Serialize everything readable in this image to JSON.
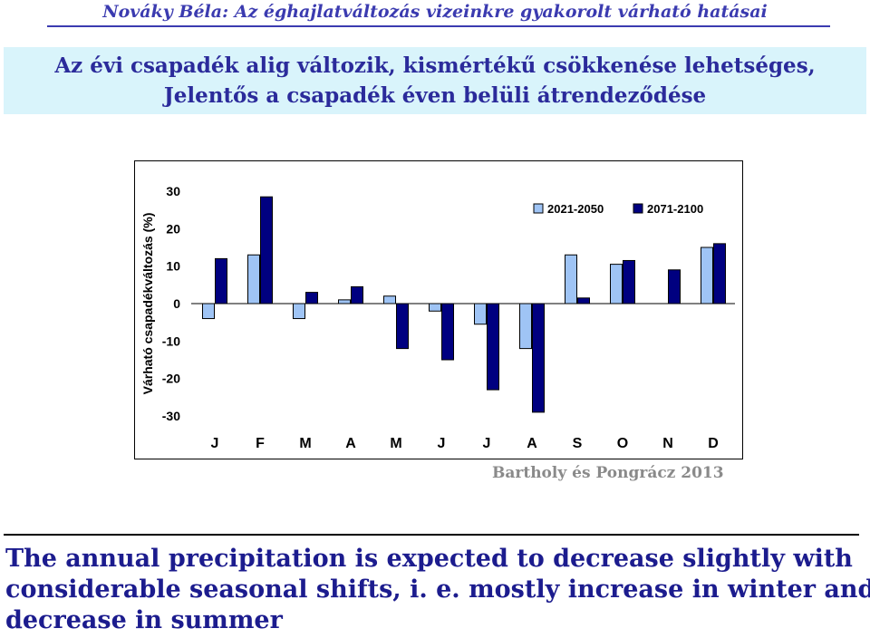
{
  "header": {
    "title": "Nováky Béla: Az éghajlatváltozás vizeinkre gyakorolt várható hatásai"
  },
  "headline": {
    "line1": "Az évi csapadék alig változik, kismértékű csökkenése lehetséges,",
    "line2": "Jelentős a csapadék éven belüli átrendeződése"
  },
  "chart_data": {
    "type": "bar",
    "title": "",
    "xlabel": "",
    "ylabel": "Várható csapadékváltozás (%)",
    "ylim": [
      -30,
      30
    ],
    "yticks": [
      30,
      20,
      10,
      0,
      -10,
      -20,
      -30
    ],
    "grid": false,
    "legend_position": "top-right",
    "categories": [
      "J",
      "F",
      "M",
      "A",
      "M",
      "J",
      "J",
      "A",
      "S",
      "O",
      "N",
      "D"
    ],
    "series": [
      {
        "name": "2021-2050",
        "color": "#9fc4f5",
        "values": [
          -4,
          13,
          -4,
          1,
          2,
          -2,
          -5.5,
          -12,
          13,
          10.5,
          0,
          15
        ]
      },
      {
        "name": "2071-2100",
        "color": "#000080",
        "values": [
          12,
          28.5,
          3,
          4.5,
          -12,
          -15,
          -23,
          -29,
          1.5,
          11.5,
          9,
          16
        ]
      }
    ]
  },
  "source": "Bartholy és Pongrácz 2013",
  "caption": {
    "line1": "The annual precipitation is expected to decrease slightly with",
    "line2": "considerable seasonal shifts, i. e. mostly increase in winter and",
    "line3": "decrease in summer"
  }
}
